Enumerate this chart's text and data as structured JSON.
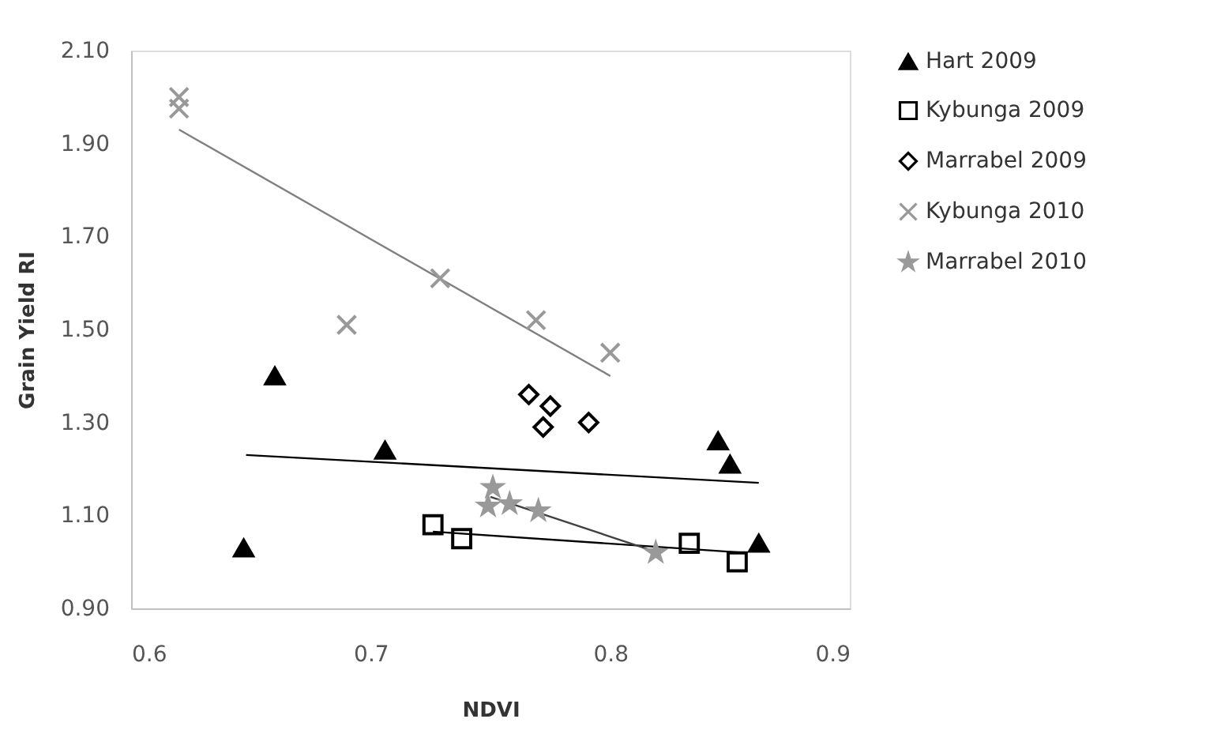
{
  "chart_data": {
    "type": "scatter",
    "xlabel": "NDVI",
    "ylabel": "Grain Yield RI",
    "xlim": [
      0.6,
      0.9
    ],
    "xticks": [
      0.6,
      0.7,
      0.8,
      0.9
    ],
    "ylim": [
      0.9,
      2.1
    ],
    "yticks": [
      {
        "value": 0.9,
        "label": "0.90"
      },
      {
        "value": 1.1,
        "label": "1.10"
      },
      {
        "value": 1.3,
        "label": "1.30"
      },
      {
        "value": 1.5,
        "label": "1.50"
      },
      {
        "value": 1.7,
        "label": "1.70"
      },
      {
        "value": 1.9,
        "label": "1.90"
      },
      {
        "value": 2.1,
        "label": "2.10"
      }
    ],
    "grid": false,
    "legend": "right",
    "series": [
      {
        "name": "Hart 2009",
        "color": "#000000",
        "marker": "triangle",
        "x": [
          0.647,
          0.66,
          0.706,
          0.845,
          0.85,
          0.862
        ],
        "values": [
          1.03,
          1.4,
          1.24,
          1.26,
          1.21,
          1.04
        ]
      },
      {
        "name": "Kybunga 2009",
        "color": "#000000",
        "marker": "square",
        "x": [
          0.726,
          0.738,
          0.833,
          0.853
        ],
        "values": [
          1.08,
          1.05,
          1.04,
          1.0
        ]
      },
      {
        "name": "Marrabel 2009",
        "color": "#000000",
        "marker": "diamond",
        "x": [
          0.766,
          0.775,
          0.772,
          0.791
        ],
        "values": [
          1.36,
          1.335,
          1.29,
          1.3
        ]
      },
      {
        "name": "Kybunga 2010",
        "color": "#999999",
        "marker": "cross",
        "x": [
          0.62,
          0.62,
          0.69,
          0.729,
          0.769,
          0.8
        ],
        "values": [
          2.0,
          1.975,
          1.51,
          1.61,
          1.52,
          1.45
        ]
      },
      {
        "name": "Marrabel 2010",
        "color": "#999999",
        "marker": "star",
        "x": [
          0.751,
          0.749,
          0.758,
          0.77,
          0.819
        ],
        "values": [
          1.16,
          1.12,
          1.125,
          1.11,
          1.02
        ]
      },
      {
        "type": "line",
        "color": "#000000",
        "x": [
          0.648,
          0.862
        ],
        "values": [
          1.23,
          1.17
        ]
      },
      {
        "type": "line",
        "color": "#000000",
        "x": [
          0.726,
          0.855
        ],
        "values": [
          1.065,
          1.02
        ]
      },
      {
        "type": "line",
        "color": "#808080",
        "x": [
          0.62,
          0.8
        ],
        "values": [
          1.93,
          1.4
        ]
      },
      {
        "type": "line",
        "color": "#404040",
        "x": [
          0.75,
          0.82
        ],
        "values": [
          1.14,
          1.02
        ]
      }
    ]
  }
}
